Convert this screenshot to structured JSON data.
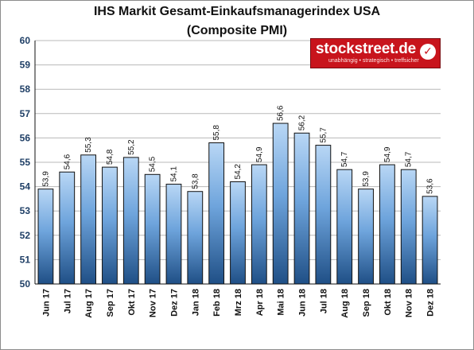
{
  "title_line1": "IHS Markit Gesamt-Einkaufsmanagerindex USA",
  "title_line2": "(Composite PMI)",
  "logo": {
    "name": "stockstreet.de",
    "tagline": "unabhängig • strategisch • treffsicher",
    "icon": "checkmark-icon"
  },
  "chart_data": {
    "type": "bar",
    "title": "IHS Markit Gesamt-Einkaufsmanagerindex USA (Composite PMI)",
    "xlabel": "",
    "ylabel": "",
    "ylim": [
      50,
      60
    ],
    "yticks": [
      50,
      51,
      52,
      53,
      54,
      55,
      56,
      57,
      58,
      59,
      60
    ],
    "grid": true,
    "categories": [
      "Jun 17",
      "Jul 17",
      "Aug 17",
      "Sep 17",
      "Okt 17",
      "Nov 17",
      "Dez 17",
      "Jan 18",
      "Feb 18",
      "Mrz 18",
      "Apr 18",
      "Mai 18",
      "Jun 18",
      "Jul 18",
      "Aug 18",
      "Sep 18",
      "Okt 18",
      "Nov 18",
      "Dez 18"
    ],
    "values": [
      53.9,
      54.6,
      55.3,
      54.8,
      55.2,
      54.5,
      54.1,
      53.8,
      55.8,
      54.2,
      54.9,
      56.6,
      56.2,
      55.7,
      54.7,
      53.9,
      54.9,
      54.7,
      53.6
    ],
    "data_labels": [
      "53,9",
      "54,6",
      "55,3",
      "54,8",
      "55,2",
      "54,5",
      "54,1",
      "53,8",
      "55,8",
      "54,2",
      "54,9",
      "56,6",
      "56,2",
      "55,7",
      "54,7",
      "53,9",
      "54,9",
      "54,7",
      "53,6"
    ],
    "colors": {
      "bar_top": "#b9d7f5",
      "bar_bottom": "#1f4f86",
      "bar_stroke": "#111111",
      "grid": "#b8b8b8",
      "axis_text": "#1f3f66"
    }
  }
}
